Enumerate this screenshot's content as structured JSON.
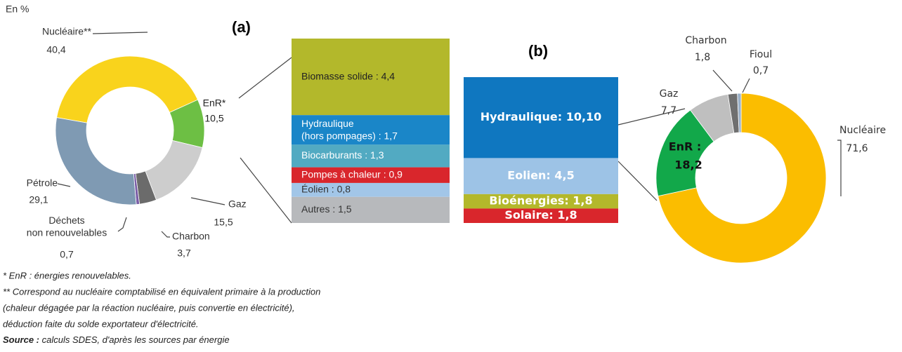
{
  "unit_label": "En %",
  "chart_data": [
    {
      "type": "donut",
      "panel": "",
      "categories": [
        "Nucléaire**",
        "EnR*",
        "Gaz",
        "Charbon",
        "Déchets\nnon renouvelables",
        "Pétrole"
      ],
      "values": [
        40.4,
        10.5,
        15.5,
        3.7,
        0.7,
        29.1
      ],
      "value_labels": [
        "40,4",
        "10,5",
        "15,5",
        "3,7",
        "0,7",
        "29,1"
      ],
      "colors": [
        "#f9d31c",
        "#6dbf44",
        "#cdcdcd",
        "#6b6b6b",
        "#7b5ea7",
        "#7f9ab3"
      ]
    },
    {
      "type": "stacked-bar",
      "panel": "(a)",
      "values": [
        4.4,
        1.7,
        1.3,
        0.9,
        0.8,
        1.5
      ],
      "value_labels": [
        "Biomasse solide : 4,4",
        "Hydraulique\n(hors pompages) : 1,7",
        "Biocarburants : 1,3",
        "Pompes à chaleur : 0,9",
        "Éolien : 0,8",
        "Autres : 1,5"
      ],
      "colors": [
        "#b3b82b",
        "#1a86c8",
        "#52aac2",
        "#d9262c",
        "#a2c6e8",
        "#b7b9bc"
      ]
    },
    {
      "type": "stacked-bar",
      "panel": "(b)",
      "values": [
        10.1,
        4.5,
        1.8,
        1.8
      ],
      "value_labels": [
        "Hydraulique: 10,10",
        "Eolien: 4,5",
        "Bioénergies: 1,8",
        "Solaire: 1,8"
      ],
      "colors": [
        "#0f77c0",
        "#9dc3e6",
        "#b3b82b",
        "#d9262c"
      ]
    },
    {
      "type": "donut",
      "panel": "",
      "categories": [
        "Nucléaire",
        "EnR :",
        "Gaz",
        "Charbon",
        "Fioul"
      ],
      "values": [
        71.6,
        18.2,
        7.7,
        1.8,
        0.7
      ],
      "value_labels": [
        "71,6",
        "18,2",
        "7,7",
        "1,8",
        "0,7"
      ],
      "colors": [
        "#fbbd00",
        "#12a84a",
        "#bfbfbf",
        "#6f6f6f",
        "#9ab0c8"
      ]
    }
  ],
  "footnotes": [
    "* EnR : énergies renouvelables.",
    "** Correspond au nucléaire comptabilisé en équivalent primaire à la production",
    "(chaleur dégagée par la réaction nucléaire, puis convertie en électricité),",
    "déduction faite du solde exportateur d'électricité."
  ],
  "source": {
    "label": "Source :",
    "text": " calculs SDES, d'après les sources par énergie"
  }
}
